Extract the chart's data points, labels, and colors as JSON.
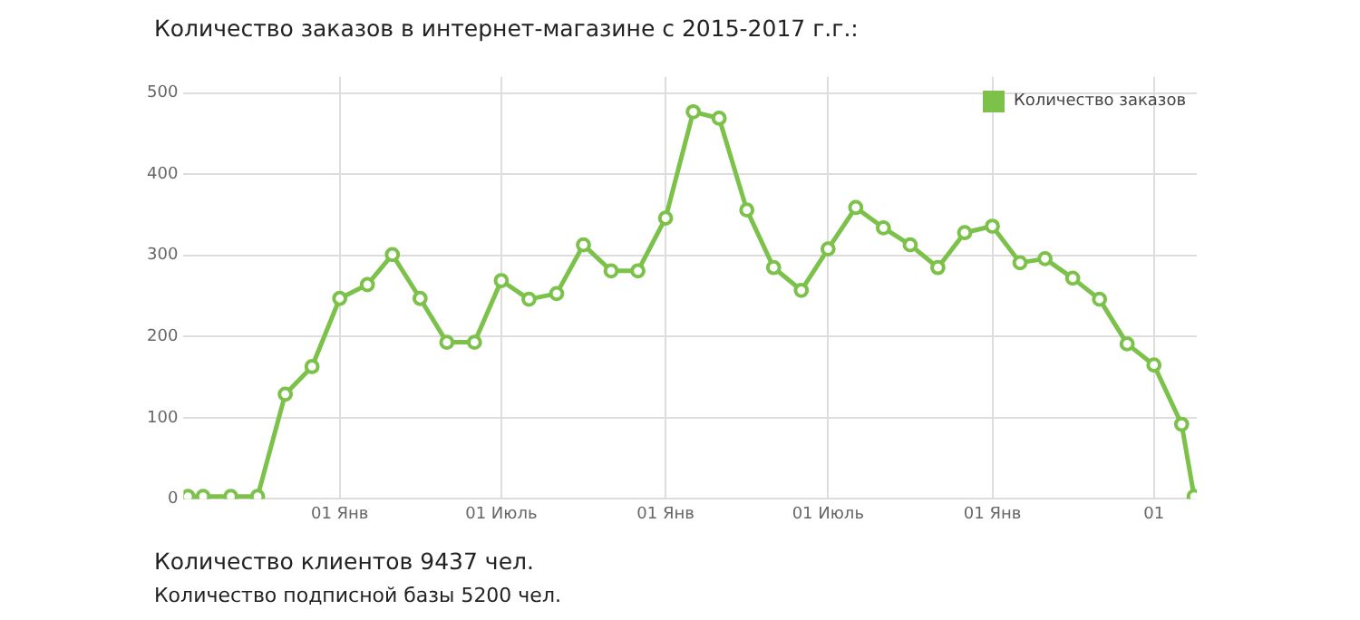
{
  "chart_data": {
    "type": "line",
    "title": "Количество заказов в интернет-магазине с 2015-2017 г.г.:",
    "x": [
      "2014-07-15",
      "2014-08-01",
      "2014-09-01",
      "2014-10-01",
      "2014-11-01",
      "2014-12-01",
      "2015-01-01",
      "2015-02-01",
      "2015-03-01",
      "2015-04-01",
      "2015-05-01",
      "2015-06-01",
      "2015-07-01",
      "2015-08-01",
      "2015-09-01",
      "2015-10-01",
      "2015-11-01",
      "2015-12-01",
      "2016-01-01",
      "2016-02-01",
      "2016-03-01",
      "2016-04-01",
      "2016-05-01",
      "2016-06-01",
      "2016-07-01",
      "2016-08-01",
      "2016-09-01",
      "2016-10-01",
      "2016-11-01",
      "2016-12-01",
      "2017-01-01",
      "2017-02-01",
      "2017-03-01",
      "2017-04-01",
      "2017-05-01",
      "2017-06-01",
      "2017-07-01",
      "2017-08-01",
      "2017-08-15"
    ],
    "series": [
      {
        "name": "Количество заказов",
        "color": "#7cc24a",
        "values": [
          3,
          3,
          3,
          3,
          129,
          163,
          247,
          264,
          301,
          247,
          193,
          193,
          269,
          246,
          253,
          313,
          281,
          281,
          346,
          477,
          469,
          356,
          285,
          257,
          308,
          359,
          334,
          313,
          285,
          328,
          336,
          291,
          296,
          272,
          246,
          191,
          165,
          92,
          3
        ]
      }
    ],
    "xlim": [
      "2014-07-10",
      "2017-08-18"
    ],
    "xticks": [
      {
        "value": "2015-01-01",
        "label": "01 Янв"
      },
      {
        "value": "2015-07-01",
        "label": "01 Июль"
      },
      {
        "value": "2016-01-01",
        "label": "01 Янв"
      },
      {
        "value": "2016-07-01",
        "label": "01 Июль"
      },
      {
        "value": "2017-01-01",
        "label": "01 Янв"
      },
      {
        "value": "2017-07-01",
        "label": "01"
      }
    ],
    "ylim": [
      0,
      520
    ],
    "yticks": [
      0,
      100,
      200,
      300,
      400,
      500
    ],
    "grid": true,
    "legend": "top right",
    "marker": "circle",
    "line_style": "solid",
    "annotations": [
      "Количество клиентов 9437 чел.",
      "Количество подписной базы 5200 чел."
    ]
  }
}
